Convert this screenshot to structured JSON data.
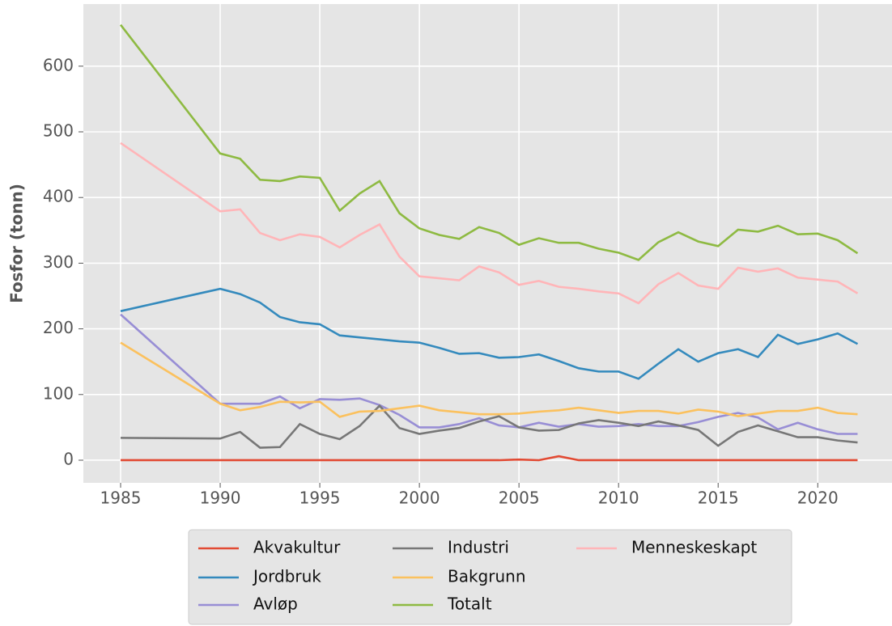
{
  "chart_data": {
    "type": "line",
    "ylabel": "Fosfor (tonn)",
    "x": [
      1985,
      1990,
      1991,
      1992,
      1993,
      1994,
      1995,
      1996,
      1997,
      1998,
      1999,
      2000,
      2001,
      2002,
      2003,
      2004,
      2005,
      2006,
      2007,
      2008,
      2009,
      2010,
      2011,
      2012,
      2013,
      2014,
      2015,
      2016,
      2017,
      2018,
      2019,
      2020,
      2021,
      2022
    ],
    "series": [
      {
        "name": "Akvakultur",
        "color": "#E24A33",
        "values": [
          0,
          0,
          0,
          0,
          0,
          0,
          0,
          0,
          0,
          0,
          0,
          0,
          0,
          0,
          0,
          0,
          1,
          0,
          6,
          0,
          0,
          0,
          0,
          0,
          0,
          0,
          0,
          0,
          0,
          0,
          0,
          0,
          0,
          0
        ]
      },
      {
        "name": "Jordbruk",
        "color": "#348ABD",
        "values": [
          227,
          261,
          253,
          240,
          218,
          210,
          207,
          190,
          187,
          184,
          181,
          179,
          171,
          162,
          163,
          156,
          157,
          161,
          151,
          140,
          135,
          135,
          124,
          147,
          169,
          150,
          163,
          169,
          157,
          191,
          177,
          184,
          193,
          177
        ]
      },
      {
        "name": "Avløp",
        "color": "#988ED5",
        "values": [
          222,
          86,
          86,
          86,
          97,
          79,
          93,
          92,
          94,
          84,
          69,
          50,
          50,
          55,
          64,
          53,
          50,
          57,
          51,
          55,
          51,
          52,
          55,
          52,
          52,
          58,
          66,
          72,
          65,
          47,
          57,
          47,
          40,
          40
        ]
      },
      {
        "name": "Industri",
        "color": "#777777",
        "values": [
          34,
          33,
          43,
          19,
          20,
          55,
          40,
          32,
          52,
          83,
          49,
          40,
          45,
          49,
          59,
          67,
          50,
          45,
          46,
          56,
          61,
          57,
          52,
          59,
          53,
          46,
          22,
          43,
          53,
          44,
          35,
          35,
          30,
          27
        ]
      },
      {
        "name": "Bakgrunn",
        "color": "#FBC15E",
        "values": [
          179,
          86,
          76,
          81,
          89,
          88,
          89,
          66,
          74,
          75,
          79,
          83,
          76,
          73,
          70,
          70,
          71,
          74,
          76,
          80,
          76,
          72,
          75,
          75,
          71,
          77,
          74,
          67,
          71,
          75,
          75,
          80,
          72,
          70
        ]
      },
      {
        "name": "Totalt",
        "color": "#8EBA42",
        "values": [
          663,
          467,
          459,
          427,
          425,
          432,
          430,
          380,
          406,
          425,
          376,
          353,
          343,
          337,
          355,
          346,
          328,
          338,
          331,
          331,
          322,
          316,
          305,
          332,
          347,
          333,
          326,
          351,
          348,
          357,
          344,
          345,
          335,
          315
        ]
      },
      {
        "name": "Menneskeskapt",
        "color": "#FFB5B8",
        "values": [
          483,
          379,
          382,
          346,
          335,
          344,
          340,
          324,
          343,
          359,
          310,
          280,
          277,
          274,
          295,
          286,
          267,
          273,
          264,
          261,
          257,
          254,
          239,
          268,
          285,
          266,
          261,
          293,
          287,
          292,
          278,
          275,
          272,
          254
        ]
      }
    ],
    "xlim": [
      1983.13,
      2023.85
    ],
    "ylim": [
      -34.5,
      694.6
    ],
    "xticks": [
      1985,
      1990,
      1995,
      2000,
      2005,
      2010,
      2015,
      2020
    ],
    "yticks": [
      0,
      100,
      200,
      300,
      400,
      500,
      600
    ],
    "grid": true,
    "legend": "bottom"
  }
}
